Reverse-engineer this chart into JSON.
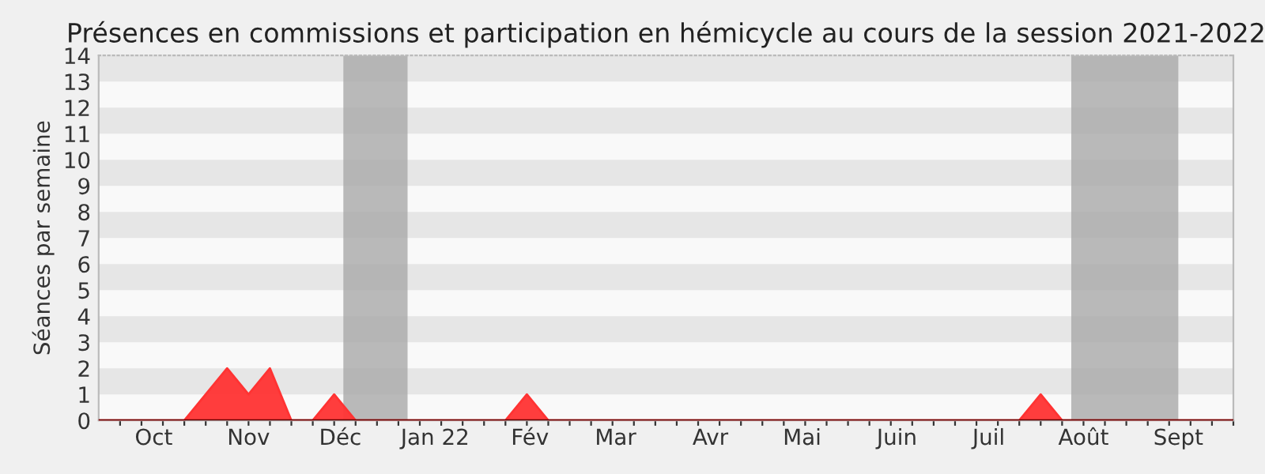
{
  "chart_data": {
    "type": "area",
    "title": "Présences en commissions et participation en hémicycle au cours de la session 2021-2022",
    "ylabel": "Séances par semaine",
    "x": [
      "2021-09-27",
      "2021-10-25",
      "2021-11-08",
      "2021-11-15",
      "2021-11-22",
      "2021-11-29",
      "2021-12-06",
      "2021-12-13",
      "2021-12-20",
      "2022-02-07",
      "2022-02-14",
      "2022-02-21",
      "2022-07-25",
      "2022-08-01",
      "2022-08-08",
      "2022-10-03"
    ],
    "series": [
      {
        "color": "#ff3333",
        "values": [
          0,
          0,
          2,
          1,
          2,
          0,
          0,
          1,
          0,
          0,
          1,
          0,
          0,
          1,
          0,
          0
        ]
      }
    ],
    "xlim": [
      "2021-09-27",
      "2022-10-03"
    ],
    "xticks": [
      {
        "value": "2021-10-15",
        "label": "Oct"
      },
      {
        "value": "2021-11-15",
        "label": "Nov"
      },
      {
        "value": "2021-12-15",
        "label": "Déc"
      },
      {
        "value": "2022-01-15",
        "label": "Jan 22"
      },
      {
        "value": "2022-02-15",
        "label": "Fév"
      },
      {
        "value": "2022-03-15",
        "label": "Mar"
      },
      {
        "value": "2022-04-15",
        "label": "Avr"
      },
      {
        "value": "2022-05-15",
        "label": "Mai"
      },
      {
        "value": "2022-06-15",
        "label": "Juin"
      },
      {
        "value": "2022-07-15",
        "label": "Juil"
      },
      {
        "value": "2022-08-15",
        "label": "Août"
      },
      {
        "value": "2022-09-15",
        "label": "Sept"
      }
    ],
    "ylim": [
      0,
      14
    ],
    "yticks": [
      0,
      1,
      2,
      3,
      4,
      5,
      6,
      7,
      8,
      9,
      10,
      11,
      12,
      13,
      14
    ],
    "bands": [
      {
        "axis": "x",
        "from": "2021-12-16",
        "to": "2022-01-06",
        "color": "#a9a9a9"
      },
      {
        "axis": "x",
        "from": "2022-08-11",
        "to": "2022-09-15",
        "color": "#a9a9a9"
      }
    ],
    "legend": false
  }
}
